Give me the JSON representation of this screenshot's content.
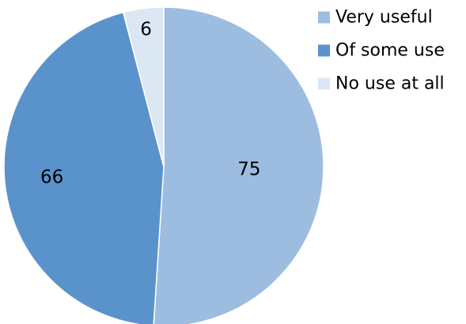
{
  "chart_data": {
    "type": "pie",
    "categories": [
      "Very useful",
      "Of some use",
      "No use at all"
    ],
    "values": [
      75,
      66,
      6
    ],
    "colors": [
      "#9DBDE0",
      "#5A93CB",
      "#DCE7F4"
    ],
    "start_angle_deg": 0,
    "direction": "clockwise",
    "legend_position": "top-right",
    "data_labels": true
  }
}
